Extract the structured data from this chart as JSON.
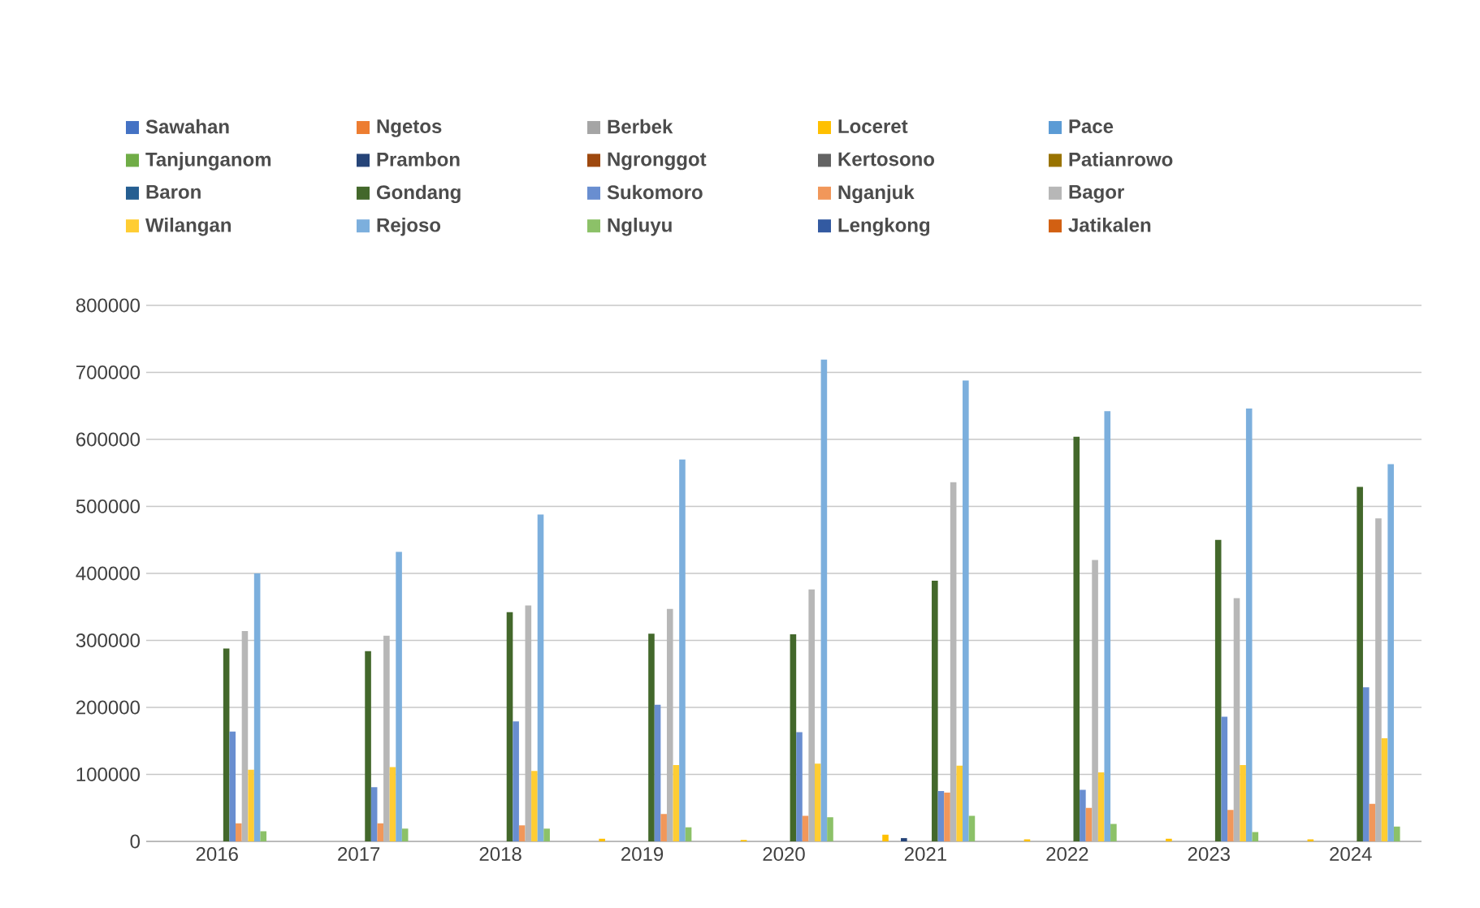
{
  "chart_data": {
    "type": "bar",
    "categories": [
      "2016",
      "2017",
      "2018",
      "2019",
      "2020",
      "2021",
      "2022",
      "2023",
      "2024"
    ],
    "ylim": [
      0,
      800000
    ],
    "yticks": [
      0,
      100000,
      200000,
      300000,
      400000,
      500000,
      600000,
      700000,
      800000
    ],
    "grid": "y",
    "legend": "top",
    "series": [
      {
        "name": "Sawahan",
        "color": "#4472c4",
        "values": [
          0,
          0,
          0,
          0,
          0,
          0,
          0,
          0,
          0
        ]
      },
      {
        "name": "Ngetos",
        "color": "#ed7d31",
        "values": [
          0,
          0,
          0,
          0,
          0,
          0,
          0,
          0,
          0
        ]
      },
      {
        "name": "Berbek",
        "color": "#a5a5a5",
        "values": [
          0,
          0,
          0,
          0,
          0,
          0,
          0,
          0,
          0
        ]
      },
      {
        "name": "Loceret",
        "color": "#ffc000",
        "values": [
          0,
          0,
          0,
          4000,
          2000,
          10000,
          3000,
          4000,
          3000
        ]
      },
      {
        "name": "Pace",
        "color": "#5b9bd5",
        "values": [
          0,
          0,
          0,
          0,
          0,
          0,
          0,
          0,
          0
        ]
      },
      {
        "name": "Tanjunganom",
        "color": "#70ad47",
        "values": [
          0,
          0,
          0,
          0,
          0,
          0,
          0,
          0,
          0
        ]
      },
      {
        "name": "Prambon",
        "color": "#264478",
        "values": [
          0,
          0,
          0,
          0,
          0,
          5000,
          0,
          0,
          0
        ]
      },
      {
        "name": "Ngronggot",
        "color": "#9e480e",
        "values": [
          0,
          0,
          0,
          0,
          0,
          0,
          0,
          0,
          0
        ]
      },
      {
        "name": "Kertosono",
        "color": "#636363",
        "values": [
          0,
          0,
          0,
          0,
          0,
          0,
          0,
          0,
          0
        ]
      },
      {
        "name": "Patianrowo",
        "color": "#997300",
        "values": [
          0,
          0,
          0,
          0,
          0,
          0,
          0,
          0,
          0
        ]
      },
      {
        "name": "Baron",
        "color": "#255e91",
        "values": [
          0,
          0,
          0,
          0,
          0,
          0,
          0,
          0,
          0
        ]
      },
      {
        "name": "Gondang",
        "color": "#43682b",
        "values": [
          288000,
          284000,
          342000,
          310000,
          309000,
          389000,
          604000,
          450000,
          529000
        ]
      },
      {
        "name": "Sukomoro",
        "color": "#698ed0",
        "values": [
          164000,
          81000,
          179000,
          204000,
          163000,
          75000,
          77000,
          186000,
          230000
        ]
      },
      {
        "name": "Nganjuk",
        "color": "#f1975a",
        "values": [
          27000,
          27000,
          24000,
          41000,
          38000,
          73000,
          50000,
          47000,
          56000
        ]
      },
      {
        "name": "Bagor",
        "color": "#b7b7b7",
        "values": [
          314000,
          307000,
          352000,
          347000,
          376000,
          536000,
          420000,
          363000,
          482000
        ]
      },
      {
        "name": "Wilangan",
        "color": "#ffcd33",
        "values": [
          107000,
          111000,
          105000,
          114000,
          116000,
          113000,
          103000,
          114000,
          154000
        ]
      },
      {
        "name": "Rejoso",
        "color": "#7cafdd",
        "values": [
          400000,
          432000,
          488000,
          570000,
          719000,
          688000,
          642000,
          646000,
          563000
        ]
      },
      {
        "name": "Ngluyu",
        "color": "#8cc168",
        "values": [
          15000,
          19000,
          19000,
          21000,
          36000,
          38000,
          26000,
          14000,
          22000
        ]
      },
      {
        "name": "Lengkong",
        "color": "#335aa1",
        "values": [
          0,
          0,
          0,
          0,
          0,
          0,
          0,
          0,
          0
        ]
      },
      {
        "name": "Jatikalen",
        "color": "#d26012",
        "values": [
          0,
          0,
          0,
          0,
          0,
          0,
          0,
          0,
          0
        ]
      }
    ]
  }
}
